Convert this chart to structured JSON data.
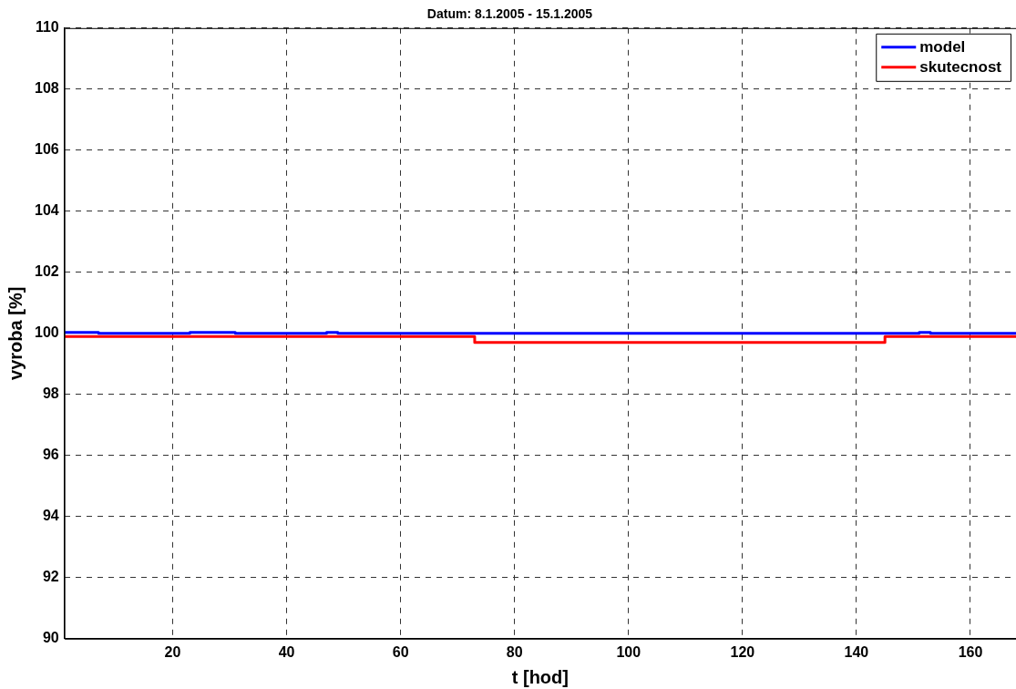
{
  "chart_data": {
    "type": "step",
    "title": "Datum: 8.1.2005 - 15.1.2005",
    "xlabel": "t [hod]",
    "ylabel": "vyroba [%]",
    "series": [
      {
        "name": "model",
        "color": "#0000ff",
        "x": [
          1,
          7,
          23,
          31,
          47,
          49,
          151,
          153,
          168
        ],
        "values": [
          100.03,
          100,
          100.03,
          100,
          100.03,
          100,
          100.03,
          100,
          100
        ]
      },
      {
        "name": "skutecnost",
        "color": "#ff0000",
        "x": [
          1,
          73,
          145,
          168
        ],
        "values": [
          99.9,
          99.7,
          99.9,
          99.9
        ]
      }
    ],
    "xlim": [
      1,
      168
    ],
    "xticks": [
      20,
      40,
      60,
      80,
      100,
      120,
      140,
      160
    ],
    "ylim": [
      90,
      110
    ],
    "yticks": [
      90,
      92,
      94,
      96,
      98,
      100,
      102,
      104,
      106,
      108,
      110
    ],
    "grid": true,
    "legend": "top right",
    "line_style": "solid",
    "marker": "none"
  }
}
